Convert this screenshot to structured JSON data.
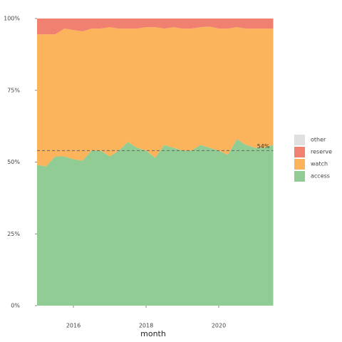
{
  "chart_data": {
    "type": "stacked_area",
    "x_label": "month",
    "x": [
      2015,
      2015.25,
      2015.5,
      2015.75,
      2016,
      2016.25,
      2016.5,
      2016.75,
      2017,
      2017.25,
      2017.5,
      2017.75,
      2018,
      2018.25,
      2018.5,
      2018.75,
      2019,
      2019.25,
      2019.5,
      2019.75,
      2020,
      2020.25,
      2020.5,
      2020.75,
      2021,
      2021.25,
      2021.5
    ],
    "series": [
      {
        "name": "access",
        "color": "#90cc94",
        "values": [
          49,
          48.5,
          52,
          52,
          51,
          50.5,
          54,
          54,
          52,
          54,
          57,
          55,
          54,
          51.5,
          56,
          55,
          54,
          54,
          56,
          55,
          54,
          52.5,
          58,
          56,
          55,
          55,
          56
        ]
      },
      {
        "name": "watch",
        "color": "#fbb35c",
        "values": [
          45.5,
          46,
          42.5,
          44.5,
          45,
          45,
          42.5,
          42.5,
          45,
          42.5,
          39.5,
          41.5,
          43,
          45.5,
          40.5,
          42,
          42.5,
          42.5,
          41,
          42.2,
          42.5,
          44,
          39,
          40.5,
          41.5,
          41.5,
          40.5
        ]
      },
      {
        "name": "reserve",
        "color": "#f08070",
        "values": [
          5.5,
          5.5,
          5.5,
          3.5,
          4,
          4.5,
          3.5,
          3.5,
          3,
          3.5,
          3.5,
          3.5,
          3,
          3,
          3.5,
          3,
          3.5,
          3.5,
          3,
          2.8,
          3.5,
          3.5,
          3,
          3.5,
          3.5,
          3.5,
          3.5
        ]
      },
      {
        "name": "other",
        "color": "#e0e0e0",
        "values": [
          0,
          0,
          0,
          0,
          0,
          0,
          0,
          0,
          0,
          0,
          0,
          0,
          0,
          0,
          0,
          0,
          0,
          0,
          0,
          0,
          0,
          0,
          0,
          0,
          0,
          0,
          0
        ]
      }
    ],
    "xlim": [
      2015,
      2021.5
    ],
    "xticks": [
      2016,
      2018,
      2020
    ],
    "ylim": [
      0,
      100
    ],
    "yticks": [
      {
        "value": 0,
        "label": "0%"
      },
      {
        "value": 25,
        "label": "25%"
      },
      {
        "value": 50,
        "label": "50%"
      },
      {
        "value": 75,
        "label": "75%"
      },
      {
        "value": 100,
        "label": "100%"
      }
    ],
    "reference_line": {
      "value": 54,
      "label": "54%"
    }
  }
}
